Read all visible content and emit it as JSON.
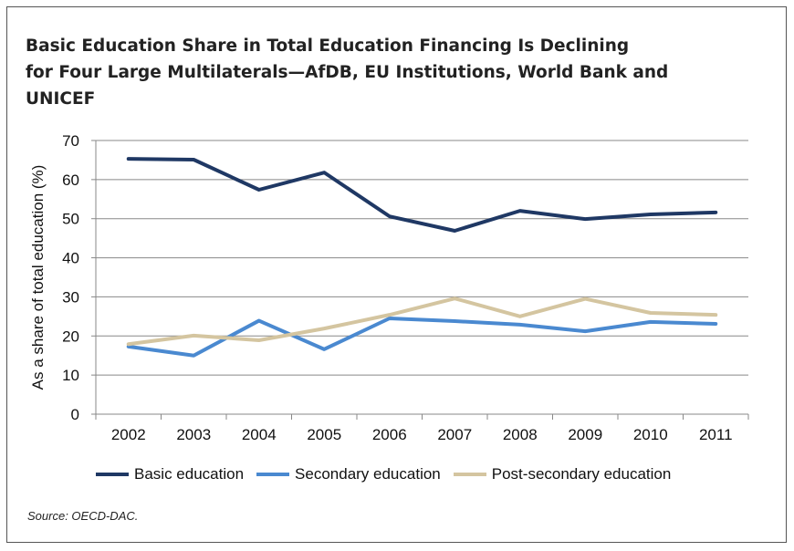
{
  "chart_data": {
    "type": "line",
    "title": "Basic Education Share in Total Education Financing Is Declining for Four Large Multilaterals—AfDB, EU Institutions, World Bank and UNICEF",
    "title_lines": [
      "Basic Education Share in Total Education Financing Is Declining",
      "for Four Large Multilaterals—AfDB, EU Institutions, World Bank and",
      "UNICEF"
    ],
    "xlabel": "",
    "ylabel": "As a share of total education (%)",
    "ylim": [
      0,
      70
    ],
    "yticks": [
      "0",
      "10",
      "20",
      "30",
      "40",
      "50",
      "60",
      "70"
    ],
    "categories": [
      "2002",
      "2003",
      "2004",
      "2005",
      "2006",
      "2007",
      "2008",
      "2009",
      "2010",
      "2011"
    ],
    "grid": true,
    "legend_position": "bottom",
    "series": [
      {
        "name": "Basic education",
        "color": "#1f3864",
        "values": [
          65.3,
          65.1,
          57.4,
          61.8,
          50.6,
          46.9,
          52.0,
          49.9,
          51.1,
          51.6
        ]
      },
      {
        "name": "Secondary education",
        "color": "#4a89d0",
        "values": [
          17.3,
          15.0,
          23.9,
          16.6,
          24.5,
          23.8,
          22.9,
          21.2,
          23.6,
          23.1
        ]
      },
      {
        "name": "Post-secondary education",
        "color": "#d4c5a0",
        "values": [
          17.9,
          20.1,
          18.9,
          21.9,
          25.4,
          29.6,
          25.0,
          29.5,
          25.9,
          25.4
        ]
      }
    ],
    "source": "Source: OECD-DAC."
  }
}
